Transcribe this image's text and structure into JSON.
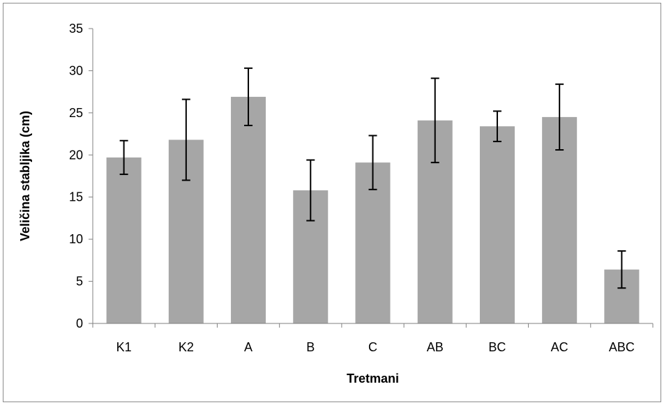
{
  "chart_data": {
    "type": "bar",
    "categories": [
      "K1",
      "K2",
      "A",
      "B",
      "C",
      "AB",
      "BC",
      "AC",
      "ABC"
    ],
    "values": [
      19.7,
      21.8,
      26.9,
      15.8,
      19.1,
      24.1,
      23.4,
      24.5,
      6.4
    ],
    "errors": [
      2.0,
      4.8,
      3.4,
      3.6,
      3.2,
      5.0,
      1.8,
      3.9,
      2.2
    ],
    "title": "",
    "xlabel": "Tretmani",
    "ylabel": "Veličina stabljika (cm)",
    "ylim": [
      0,
      35
    ],
    "yticks": [
      0,
      5,
      10,
      15,
      20,
      25,
      30,
      35
    ],
    "grid": false,
    "legend": "none",
    "bar_color": "#a6a6a6",
    "axis_color": "#808080",
    "error_bar_color": "#000000"
  }
}
